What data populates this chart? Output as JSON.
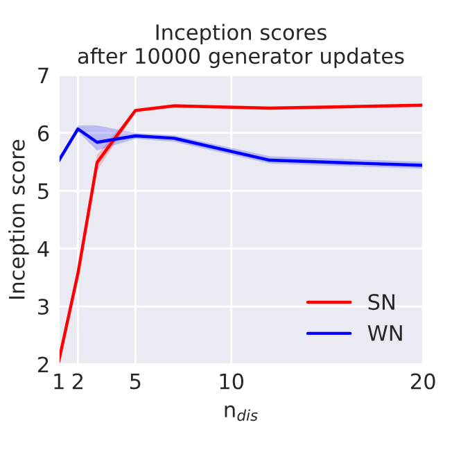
{
  "chart_data": {
    "type": "line",
    "title": "Inception scores\nafter 10000 generator updates",
    "xlabel": "n$_{dis}$",
    "ylabel": "Inception score",
    "x": [
      1,
      2,
      3,
      5,
      7,
      12,
      20
    ],
    "series": [
      {
        "name": "SN",
        "color": "#ff0000",
        "values": [
          2.05,
          3.57,
          5.49,
          6.39,
          6.47,
          6.43,
          6.48
        ],
        "lower": [
          2.02,
          3.5,
          5.35,
          6.36,
          6.44,
          6.4,
          6.45
        ],
        "upper": [
          2.08,
          3.62,
          5.62,
          6.42,
          6.5,
          6.46,
          6.51
        ]
      },
      {
        "name": "WN",
        "color": "#0000ff",
        "values": [
          5.52,
          6.07,
          5.84,
          5.95,
          5.91,
          5.53,
          5.44
        ],
        "lower": [
          5.49,
          6.02,
          5.7,
          5.9,
          5.85,
          5.47,
          5.38
        ],
        "upper": [
          5.55,
          6.13,
          6.13,
          6.0,
          5.96,
          5.6,
          5.5
        ]
      }
    ],
    "xlim": [
      1,
      20
    ],
    "xticks": [
      1,
      2,
      5,
      10,
      20
    ],
    "ylim": [
      2,
      7
    ],
    "yticks": [
      2,
      3,
      4,
      5,
      6,
      7
    ],
    "grid": true,
    "legend": "lower right"
  }
}
